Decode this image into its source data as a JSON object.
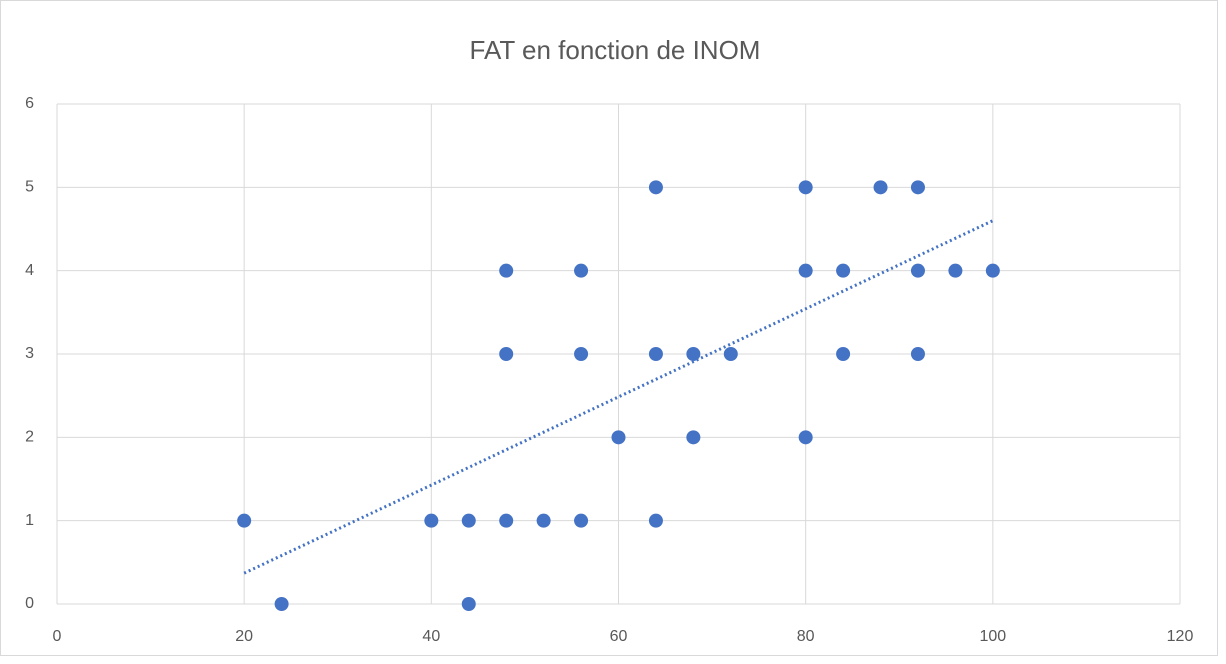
{
  "chart_data": {
    "type": "scatter",
    "title": "FAT en fonction de INOM",
    "x": [
      20,
      24,
      40,
      44,
      44,
      48,
      52,
      56,
      64,
      60,
      68,
      80,
      48,
      56,
      64,
      68,
      72,
      84,
      92,
      48,
      56,
      80,
      84,
      92,
      96,
      100,
      64,
      80,
      88,
      92
    ],
    "values": [
      1,
      0,
      1,
      1,
      0,
      1,
      1,
      1,
      1,
      2,
      2,
      2,
      3,
      3,
      3,
      3,
      3,
      3,
      3,
      4,
      4,
      4,
      4,
      4,
      4,
      4,
      5,
      5,
      5,
      5
    ],
    "color": "#4472c4",
    "trendline": {
      "x": [
        20,
        100
      ],
      "y": [
        0.37,
        4.6
      ]
    },
    "xlim": [
      0,
      120
    ],
    "xticks": [
      0,
      20,
      40,
      60,
      80,
      100,
      120
    ],
    "ylim": [
      0,
      6
    ],
    "yticks": [
      0,
      1,
      2,
      3,
      4,
      5,
      6
    ],
    "grid": true
  }
}
